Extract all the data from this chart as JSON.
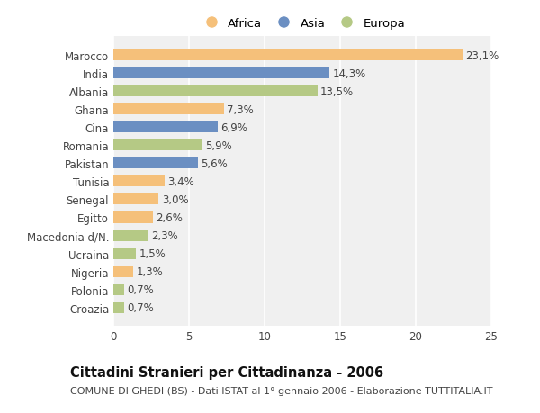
{
  "categories": [
    "Marocco",
    "India",
    "Albania",
    "Ghana",
    "Cina",
    "Romania",
    "Pakistan",
    "Tunisia",
    "Senegal",
    "Egitto",
    "Macedonia d/N.",
    "Ucraina",
    "Nigeria",
    "Polonia",
    "Croazia"
  ],
  "values": [
    23.1,
    14.3,
    13.5,
    7.3,
    6.9,
    5.9,
    5.6,
    3.4,
    3.0,
    2.6,
    2.3,
    1.5,
    1.3,
    0.7,
    0.7
  ],
  "labels": [
    "23,1%",
    "14,3%",
    "13,5%",
    "7,3%",
    "6,9%",
    "5,9%",
    "5,6%",
    "3,4%",
    "3,0%",
    "2,6%",
    "2,3%",
    "1,5%",
    "1,3%",
    "0,7%",
    "0,7%"
  ],
  "colors": [
    "#F5C07A",
    "#6B8FC2",
    "#B5C985",
    "#F5C07A",
    "#6B8FC2",
    "#B5C985",
    "#6B8FC2",
    "#F5C07A",
    "#F5C07A",
    "#F5C07A",
    "#B5C985",
    "#B5C985",
    "#F5C07A",
    "#B5C985",
    "#B5C985"
  ],
  "continent_labels": [
    "Africa",
    "Asia",
    "Europa"
  ],
  "continent_colors": [
    "#F5C07A",
    "#6B8FC2",
    "#B5C985"
  ],
  "title": "Cittadini Stranieri per Cittadinanza - 2006",
  "subtitle": "COMUNE DI GHEDI (BS) - Dati ISTAT al 1° gennaio 2006 - Elaborazione TUTTITALIA.IT",
  "xlim": [
    0,
    25
  ],
  "xticks": [
    0,
    5,
    10,
    15,
    20,
    25
  ],
  "bg_color": "#ffffff",
  "plot_bg_color": "#f0f0f0",
  "grid_color": "#ffffff",
  "bar_height": 0.6,
  "label_fontsize": 8.5,
  "tick_fontsize": 8.5,
  "title_fontsize": 10.5,
  "subtitle_fontsize": 8.0
}
